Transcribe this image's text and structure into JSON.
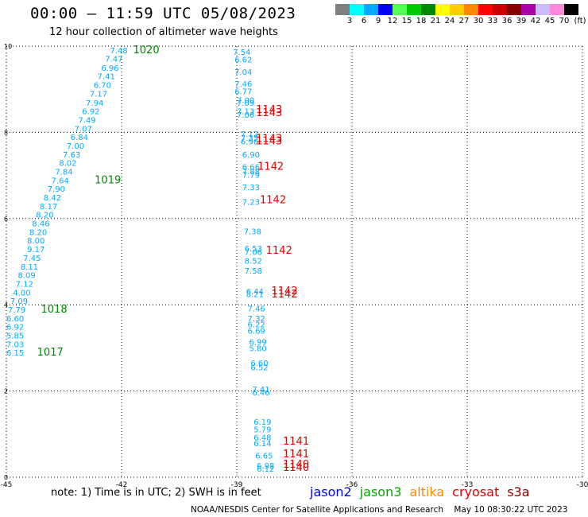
{
  "header": {
    "title": "00:00 — 11:59 UTC 05/08/2023",
    "subtitle": "12 hour collection of altimeter wave heights"
  },
  "legend": {
    "colors": [
      "#808080",
      "#00ffff",
      "#00aaff",
      "#0000ff",
      "#55ff55",
      "#00cc00",
      "#008800",
      "#ffff00",
      "#ffcc00",
      "#ff8800",
      "#ff0000",
      "#cc0000",
      "#880000",
      "#aa00aa",
      "#ccbbff",
      "#ff88dd",
      "#000000"
    ],
    "ticks": [
      "3",
      "6",
      "9",
      "12",
      "15",
      "18",
      "21",
      "24",
      "27",
      "30",
      "33",
      "36",
      "39",
      "42",
      "45",
      "70",
      "(ft)"
    ]
  },
  "chart_data": {
    "type": "scatter",
    "title": "12 hour collection of altimeter wave heights",
    "x_ticks": [
      "-45",
      "-42",
      "-39",
      "-36",
      "-33",
      "-30"
    ],
    "y_ticks": [
      "0",
      "2",
      "4",
      "6",
      "8",
      "10"
    ],
    "xlim": [
      -45,
      -30
    ],
    "ylim": [
      0,
      10
    ],
    "series": [
      {
        "name": "jason3",
        "color": "#00aaff",
        "points": [
          {
            "x": -42.3,
            "y": 9.83,
            "v": "7.48"
          },
          {
            "x": -42.43,
            "y": 9.64,
            "v": "7.47"
          },
          {
            "x": -42.53,
            "y": 9.43,
            "v": "6.96"
          },
          {
            "x": -42.63,
            "y": 9.23,
            "v": "7.41"
          },
          {
            "x": -42.73,
            "y": 9.03,
            "v": "6.70"
          },
          {
            "x": -42.83,
            "y": 8.83,
            "v": "7.17"
          },
          {
            "x": -42.93,
            "y": 8.62,
            "v": "7.94"
          },
          {
            "x": -43.03,
            "y": 8.42,
            "v": "6.92"
          },
          {
            "x": -43.13,
            "y": 8.22,
            "v": "7.49"
          },
          {
            "x": -43.23,
            "y": 8.02,
            "v": "7.07"
          },
          {
            "x": -43.33,
            "y": 7.82,
            "v": "6.84"
          },
          {
            "x": -43.43,
            "y": 7.62,
            "v": "7.00"
          },
          {
            "x": -43.53,
            "y": 7.42,
            "v": "7.63"
          },
          {
            "x": -43.63,
            "y": 7.22,
            "v": "8.02"
          },
          {
            "x": -43.73,
            "y": 7.02,
            "v": "7.84"
          },
          {
            "x": -43.83,
            "y": 6.82,
            "v": "7.64"
          },
          {
            "x": -43.93,
            "y": 6.62,
            "v": "7.90"
          },
          {
            "x": -44.03,
            "y": 6.42,
            "v": "8.42"
          },
          {
            "x": -44.13,
            "y": 6.22,
            "v": "8.17"
          },
          {
            "x": -44.23,
            "y": 6.02,
            "v": "8.20"
          },
          {
            "x": -44.33,
            "y": 5.82,
            "v": "8.46"
          },
          {
            "x": -44.4,
            "y": 5.62,
            "v": "8.20"
          },
          {
            "x": -44.46,
            "y": 5.42,
            "v": "8.00"
          },
          {
            "x": -44.46,
            "y": 5.22,
            "v": "9.17"
          },
          {
            "x": -44.56,
            "y": 5.02,
            "v": "7.45"
          },
          {
            "x": -44.63,
            "y": 4.82,
            "v": "8.11"
          },
          {
            "x": -44.7,
            "y": 4.62,
            "v": "8.09"
          },
          {
            "x": -44.76,
            "y": 4.42,
            "v": "7.12"
          },
          {
            "x": -44.83,
            "y": 4.22,
            "v": "4.00"
          },
          {
            "x": -44.9,
            "y": 4.02,
            "v": "7.09"
          },
          {
            "x": -44.96,
            "y": 3.82,
            "v": "7.79"
          },
          {
            "x": -45.0,
            "y": 3.62,
            "v": "6.60"
          },
          {
            "x": -45.0,
            "y": 3.42,
            "v": "6.92"
          },
          {
            "x": -45.0,
            "y": 3.22,
            "v": "5.85"
          },
          {
            "x": -45.0,
            "y": 3.02,
            "v": "7.03"
          },
          {
            "x": -45.0,
            "y": 2.82,
            "v": "6.15"
          }
        ]
      },
      {
        "name": "cryosat",
        "color": "#00aaff",
        "points": [
          {
            "x": -39.1,
            "y": 9.8,
            "v": "7.54"
          },
          {
            "x": -39.06,
            "y": 9.62,
            "v": "6.62"
          },
          {
            "x": -39.06,
            "y": 9.34,
            "v": "7.04"
          },
          {
            "x": -39.06,
            "y": 9.06,
            "v": "7.46"
          },
          {
            "x": -39.06,
            "y": 8.88,
            "v": "6.77"
          },
          {
            "x": -39.0,
            "y": 8.68,
            "v": "7.00"
          },
          {
            "x": -39.0,
            "y": 8.62,
            "v": "7.09"
          },
          {
            "x": -39.0,
            "y": 8.42,
            "v": "7.13"
          },
          {
            "x": -39.0,
            "y": 8.34,
            "v": "7.06"
          },
          {
            "x": -38.9,
            "y": 7.9,
            "v": "7.12"
          },
          {
            "x": -38.9,
            "y": 7.8,
            "v": "7.35"
          },
          {
            "x": -38.9,
            "y": 7.72,
            "v": "6.96"
          },
          {
            "x": -38.86,
            "y": 7.42,
            "v": "6.90"
          },
          {
            "x": -38.86,
            "y": 7.13,
            "v": "6.66"
          },
          {
            "x": -38.86,
            "y": 7.03,
            "v": "7.88"
          },
          {
            "x": -38.86,
            "y": 6.95,
            "v": "7.79"
          },
          {
            "x": -38.86,
            "y": 6.66,
            "v": "7.33"
          },
          {
            "x": -38.86,
            "y": 6.32,
            "v": "7.23"
          },
          {
            "x": -38.82,
            "y": 5.64,
            "v": "7.38"
          },
          {
            "x": -38.8,
            "y": 5.24,
            "v": "6.53"
          },
          {
            "x": -38.8,
            "y": 5.16,
            "v": "7.06"
          },
          {
            "x": -38.8,
            "y": 4.95,
            "v": "8.52"
          },
          {
            "x": -38.8,
            "y": 4.72,
            "v": "7.58"
          },
          {
            "x": -38.76,
            "y": 4.24,
            "v": "6.44"
          },
          {
            "x": -38.76,
            "y": 4.18,
            "v": "8.21"
          },
          {
            "x": -38.72,
            "y": 3.85,
            "v": "7.46"
          },
          {
            "x": -38.72,
            "y": 3.62,
            "v": "7.32"
          },
          {
            "x": -38.72,
            "y": 3.48,
            "v": "6.22"
          },
          {
            "x": -38.72,
            "y": 3.33,
            "v": "6.69"
          },
          {
            "x": -38.68,
            "y": 3.07,
            "v": "6.99"
          },
          {
            "x": -38.68,
            "y": 2.92,
            "v": "5.80"
          },
          {
            "x": -38.64,
            "y": 2.58,
            "v": "6.60"
          },
          {
            "x": -38.64,
            "y": 2.48,
            "v": "6.52"
          },
          {
            "x": -38.6,
            "y": 1.97,
            "v": "7.41"
          },
          {
            "x": -38.6,
            "y": 1.9,
            "v": "6.46"
          },
          {
            "x": -38.56,
            "y": 1.22,
            "v": "6.19"
          },
          {
            "x": -38.56,
            "y": 1.04,
            "v": "5.79"
          },
          {
            "x": -38.56,
            "y": 0.86,
            "v": "6.48"
          },
          {
            "x": -38.56,
            "y": 0.72,
            "v": "6.14"
          },
          {
            "x": -38.52,
            "y": 0.43,
            "v": "6.65"
          },
          {
            "x": -38.48,
            "y": 0.2,
            "v": "6.98"
          },
          {
            "x": -38.48,
            "y": 0.13,
            "v": "6.12"
          }
        ]
      },
      {
        "name": "jason3-time",
        "color": "#008800",
        "points": [
          {
            "x": -41.7,
            "y": 9.83,
            "v": "1020"
          },
          {
            "x": -42.7,
            "y": 6.82,
            "v": "1019"
          },
          {
            "x": -44.1,
            "y": 3.82,
            "v": "1018"
          },
          {
            "x": -44.2,
            "y": 2.82,
            "v": "1017"
          }
        ]
      },
      {
        "name": "cryosat-time",
        "color": "#dd0000",
        "points": [
          {
            "x": -38.5,
            "y": 8.45,
            "v": "1143"
          },
          {
            "x": -38.5,
            "y": 8.38,
            "v": "1143"
          },
          {
            "x": -38.5,
            "y": 7.78,
            "v": "1143"
          },
          {
            "x": -38.5,
            "y": 7.72,
            "v": "1143"
          },
          {
            "x": -38.46,
            "y": 7.13,
            "v": "1142"
          },
          {
            "x": -38.4,
            "y": 6.36,
            "v": "1142"
          },
          {
            "x": -38.24,
            "y": 5.18,
            "v": "1142"
          },
          {
            "x": -38.1,
            "y": 4.24,
            "v": "1142"
          },
          {
            "x": -38.1,
            "y": 4.17,
            "v": "1142"
          },
          {
            "x": -37.8,
            "y": 0.76,
            "v": "1141"
          },
          {
            "x": -37.8,
            "y": 0.46,
            "v": "1141"
          },
          {
            "x": -37.8,
            "y": 0.22,
            "v": "1140"
          },
          {
            "x": -37.8,
            "y": 0.15,
            "v": "1140"
          }
        ]
      }
    ]
  },
  "note": "note: 1) Time is in UTC; 2) SWH is in feet",
  "missions": [
    {
      "label": "jason2",
      "color": "#0000ff"
    },
    {
      "label": "jason3",
      "color": "#00aa00"
    },
    {
      "label": "altika",
      "color": "#ff8800"
    },
    {
      "label": "cryosat",
      "color": "#dd0000"
    },
    {
      "label": "s3a",
      "color": "#880000"
    }
  ],
  "footer": {
    "credit": "NOAA/NESDIS Center for Satellite Applications and Research",
    "timestamp": "May 10 08:30:22 UTC 2023"
  }
}
